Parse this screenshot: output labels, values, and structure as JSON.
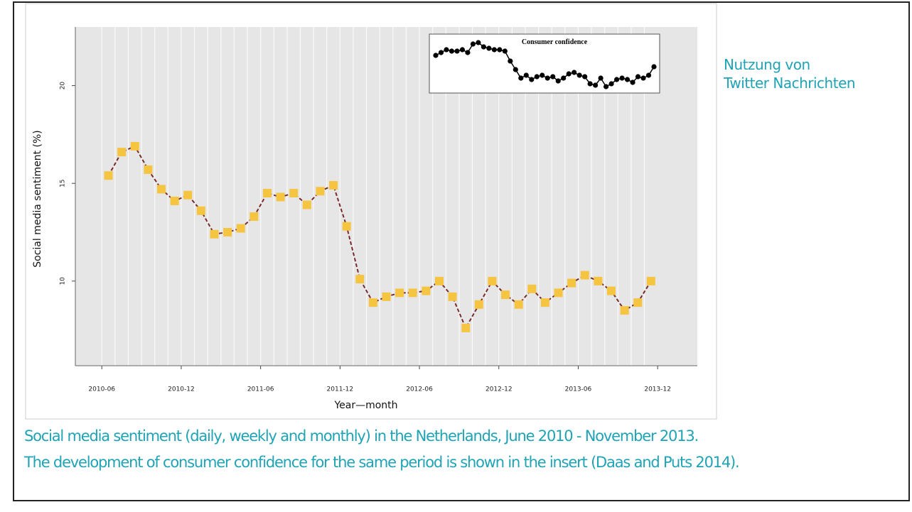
{
  "side_note": [
    "Nutzung von",
    "Twitter Nachrichten"
  ],
  "caption": [
    "Social media sentiment (daily, weekly and monthly) in the Netherlands, June 2010 - November 2013.",
    "The development of consumer confidence for the same period is shown in the insert (Daas and Puts 2014)."
  ],
  "chart_data": [
    {
      "type": "line",
      "ylabel": "Social media sentiment (%)",
      "xlabel": "Year—month",
      "x": [
        "2010-06",
        "2010-07",
        "2010-08",
        "2010-09",
        "2010-10",
        "2010-11",
        "2010-12",
        "2011-01",
        "2011-02",
        "2011-03",
        "2011-04",
        "2011-05",
        "2011-06",
        "2011-07",
        "2011-08",
        "2011-09",
        "2011-10",
        "2011-11",
        "2011-12",
        "2012-01",
        "2012-02",
        "2012-03",
        "2012-04",
        "2012-05",
        "2012-06",
        "2012-07",
        "2012-08",
        "2012-09",
        "2012-10",
        "2012-11",
        "2012-12",
        "2013-01",
        "2013-02",
        "2013-03",
        "2013-04",
        "2013-05",
        "2013-06",
        "2013-07",
        "2013-08",
        "2013-09",
        "2013-10",
        "2013-11"
      ],
      "values": [
        15.4,
        16.6,
        16.9,
        15.7,
        14.7,
        14.1,
        14.4,
        13.6,
        12.4,
        12.5,
        12.7,
        13.3,
        14.5,
        14.3,
        14.5,
        13.9,
        14.6,
        14.9,
        12.8,
        10.1,
        8.9,
        9.2,
        9.4,
        9.4,
        9.5,
        10.0,
        9.2,
        7.6,
        8.8,
        10.0,
        9.3,
        8.8,
        9.6,
        8.9,
        9.4,
        9.9,
        10.3,
        10.0,
        9.5,
        8.5,
        8.9,
        10.0
      ],
      "color": "#f5c542",
      "line_color": "#7a2a2a",
      "xlim": [
        "2010-04",
        "2014-03"
      ],
      "xticks": [
        "2010-06",
        "2010-12",
        "2011-06",
        "2011-12",
        "2012-06",
        "2012-12",
        "2013-06",
        "2013-12"
      ],
      "ylim": [
        5.67,
        23.0
      ],
      "yticks": [
        10,
        15,
        20
      ]
    },
    {
      "type": "line",
      "title": "Consumer confidence",
      "color": "#000000",
      "values": [
        -14,
        -12,
        -10,
        -11,
        -11,
        -10,
        -12,
        -6,
        -5,
        -8,
        -9,
        -10,
        -10,
        -11,
        -18,
        -24,
        -30,
        -28,
        -31,
        -29,
        -28,
        -30,
        -29,
        -32,
        -30,
        -27,
        -26,
        -28,
        -29,
        -34,
        -35,
        -30,
        -36,
        -34,
        -31,
        -30,
        -31,
        -33,
        -29,
        -30,
        -28,
        -22
      ]
    }
  ]
}
